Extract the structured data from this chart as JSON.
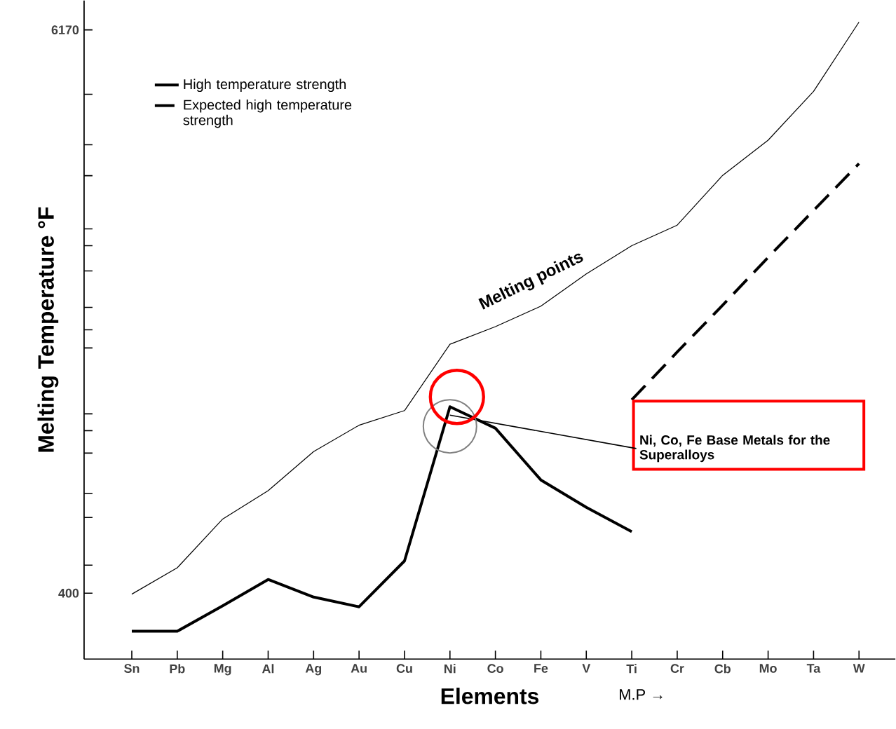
{
  "chart_data": {
    "type": "line",
    "xlabel": "Elements",
    "ylabel": "Melting Temperature °F",
    "categories": [
      "Sn",
      "Pb",
      "Mg",
      "Al",
      "Ag",
      "Au",
      "Cu",
      "Ni",
      "Co",
      "Fe",
      "V",
      "Ti",
      "Cr",
      "Cb",
      "Mo",
      "Ta",
      "W"
    ],
    "series": [
      {
        "name": "Melting points",
        "color": "#000000",
        "line_style": "solid",
        "values": [
          390,
          660,
          1160,
          1450,
          1850,
          2120,
          2270,
          2950,
          3130,
          3340,
          3670,
          3960,
          4170,
          4680,
          5040,
          5540,
          6250
        ]
      },
      {
        "name": "High temperature strength",
        "color": "#000000",
        "line_style": "solid",
        "values": [
          10,
          10,
          270,
          540,
          360,
          260,
          730,
          2310,
          2090,
          1560,
          1280,
          1030,
          null,
          null,
          null,
          null,
          null
        ]
      },
      {
        "name": "Expected high temperature strength",
        "color": "#000000",
        "line_style": "dashed",
        "values": [
          null,
          null,
          null,
          null,
          null,
          null,
          null,
          null,
          null,
          null,
          null,
          2380,
          2870,
          3350,
          3840,
          4320,
          4800
        ]
      }
    ],
    "ylim": [
      -275,
      6470
    ],
    "yticks": [
      400,
      {
        "value": 687,
        "label": null
      },
      {
        "value": 1175,
        "label": null
      },
      {
        "value": 1419,
        "label": null
      },
      {
        "value": 1835,
        "label": null
      },
      {
        "value": 2065,
        "label": null
      },
      {
        "value": 2237,
        "label": null
      },
      {
        "value": 2912,
        "label": null
      },
      {
        "value": 3098,
        "label": null
      },
      {
        "value": 3328,
        "label": null
      },
      {
        "value": 3701,
        "label": null
      },
      {
        "value": 3960,
        "label": null
      },
      {
        "value": 4132,
        "label": null
      },
      {
        "value": 4677,
        "label": null
      },
      {
        "value": 4993,
        "label": null
      },
      {
        "value": 5510,
        "label": null
      },
      6170
    ],
    "legend": "top left",
    "annotations": [
      {
        "text": "Ni, Co, Fe Base Metals for the Superalloys",
        "x": "Ni",
        "y": 2310
      },
      "M.P →"
    ]
  }
}
